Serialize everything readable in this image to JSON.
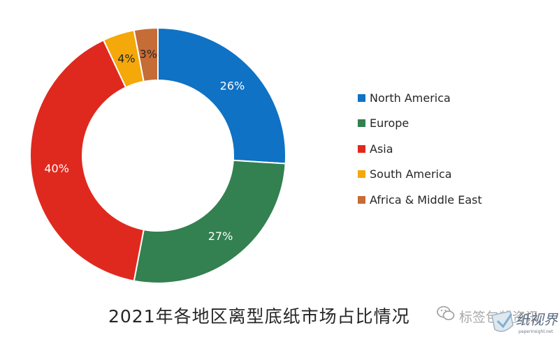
{
  "chart_data": {
    "type": "pie",
    "variant": "donut",
    "title": "2021年各地区离型底纸市场占比情况",
    "categories": [
      "North America",
      "Europe",
      "Asia",
      "South America",
      "Africa & Middle East"
    ],
    "values": [
      26,
      27,
      40,
      4,
      3
    ],
    "labels": [
      "26%",
      "27%",
      "40%",
      "4%",
      "3%"
    ],
    "colors": [
      "#0f72c4",
      "#338050",
      "#e0291e",
      "#f4a809",
      "#c66c36"
    ],
    "label_colors": [
      "#ffffff",
      "#ffffff",
      "#ffffff",
      "#262626",
      "#262626"
    ],
    "legend_position": "right"
  },
  "watermark": {
    "account_name": "标签包装资讯",
    "logo_text": "纸视界",
    "logo_url": "paperinsight.net"
  }
}
